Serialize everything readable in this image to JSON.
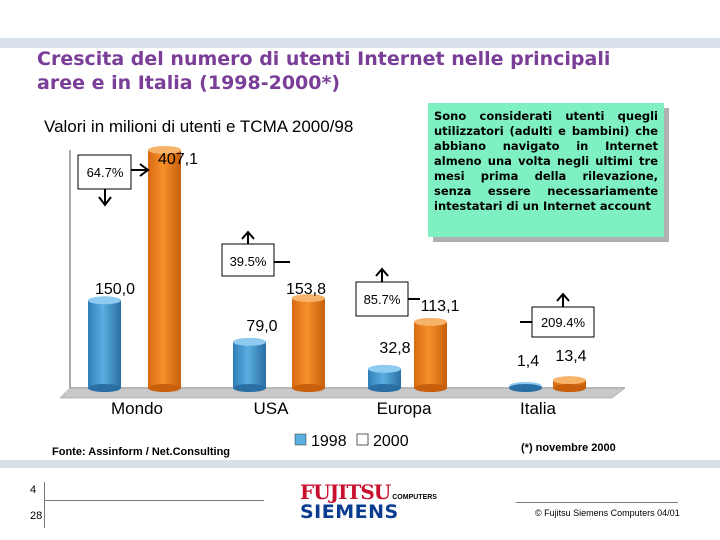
{
  "header": {
    "title": "Crescita del numero di utenti Internet nelle principali aree e in Italia (1998-2000*)",
    "subtitle": "Valori in milioni di utenti e TCMA 2000/98"
  },
  "note": "Sono considerati utenti quegli utilizzatori (adulti e bambini) che abbiano navigato in Internet almeno una volta negli ultimi tre mesi prima della rilevazione, senza essere necessariamente intestatari di un Internet account",
  "footer": {
    "source": "Fonte: Assinform / Net.Consulting",
    "footnote": "(*) novembre 2000",
    "page_top": "4",
    "page_bottom": "28",
    "copyright": "© Fujitsu Siemens Computers 04/01",
    "logo_fujitsu": "FUJITSU",
    "logo_computers": "COMPUTERS",
    "logo_siemens": "SIEMENS"
  },
  "colors": {
    "series_1998": "#5aaee0",
    "series_2000": "#f5902a",
    "title": "#7a3e98",
    "note_bg": "#7ef0c2"
  },
  "chart_data": {
    "type": "bar",
    "categories": [
      "Mondo",
      "USA",
      "Europa",
      "Italia"
    ],
    "series": [
      {
        "name": "1998",
        "values": [
          150.0,
          79.0,
          32.8,
          1.4
        ],
        "labels": [
          "150,0",
          "79,0",
          "32,8",
          "1,4"
        ]
      },
      {
        "name": "2000",
        "values": [
          407.1,
          153.8,
          113.1,
          13.4
        ],
        "labels": [
          "407,1",
          "153,8",
          "113,1",
          "13,4"
        ]
      }
    ],
    "growth_labels": [
      "64.7%",
      "39.5%",
      "85.7%",
      "209.4%"
    ],
    "legend": [
      "1998",
      "2000"
    ],
    "legend_position": "bottom-center",
    "ylim": [
      0,
      420
    ],
    "grid": false
  }
}
